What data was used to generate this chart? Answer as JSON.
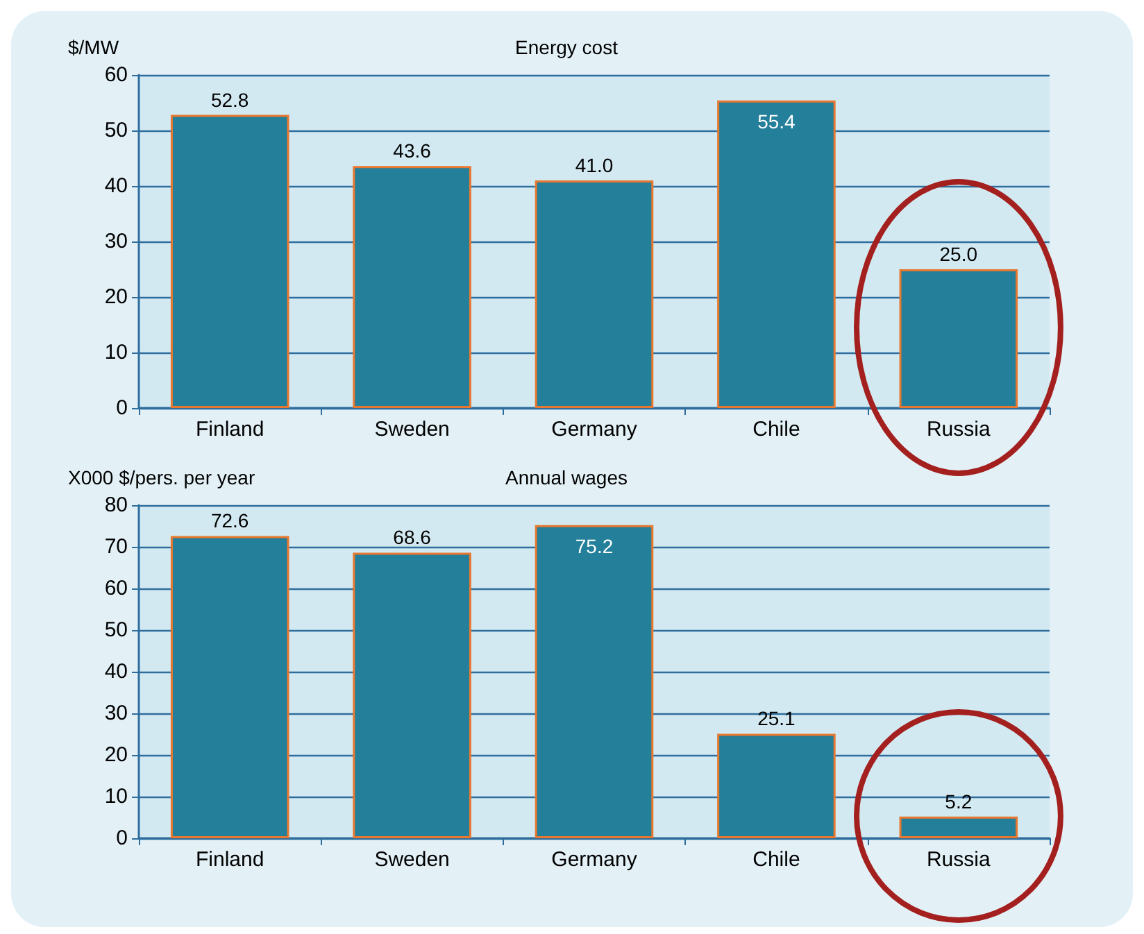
{
  "chart_data": [
    {
      "type": "bar",
      "title": "Energy cost",
      "ylabel": "$/MW",
      "categories": [
        "Finland",
        "Sweden",
        "Germany",
        "Chile",
        "Russia"
      ],
      "values": [
        52.8,
        43.6,
        41.0,
        55.4,
        25.0
      ],
      "color": "#237f9a",
      "ylim": [
        0,
        60
      ],
      "yticks": [
        0,
        10,
        20,
        30,
        40,
        50,
        60
      ],
      "grid": "y",
      "data_labels": true,
      "value_labels": [
        "52.8",
        "43.6",
        "41.0",
        "55.4",
        "25.0"
      ]
    },
    {
      "type": "bar",
      "title": "Annual wages",
      "ylabel": "X000 $/pers. per year",
      "categories": [
        "Finland",
        "Sweden",
        "Germany",
        "Chile",
        "Russia"
      ],
      "values": [
        72.6,
        68.6,
        75.2,
        25.1,
        5.2
      ],
      "color": "#237f9a",
      "ylim": [
        0,
        80
      ],
      "yticks": [
        0,
        10,
        20,
        30,
        40,
        50,
        60,
        70,
        80
      ],
      "grid": "y",
      "data_labels": true,
      "value_labels": [
        "72.6",
        "68.6",
        "75.2",
        "25.1",
        "5.2"
      ]
    }
  ]
}
